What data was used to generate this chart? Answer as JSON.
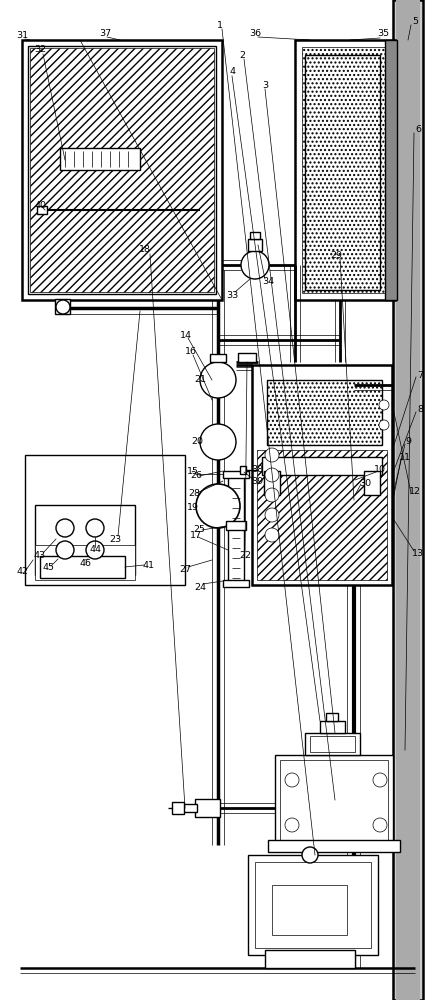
{
  "bg_color": "#ffffff",
  "lc": "#000000",
  "lw": 1.0,
  "tlw": 0.5,
  "thk": 1.8
}
